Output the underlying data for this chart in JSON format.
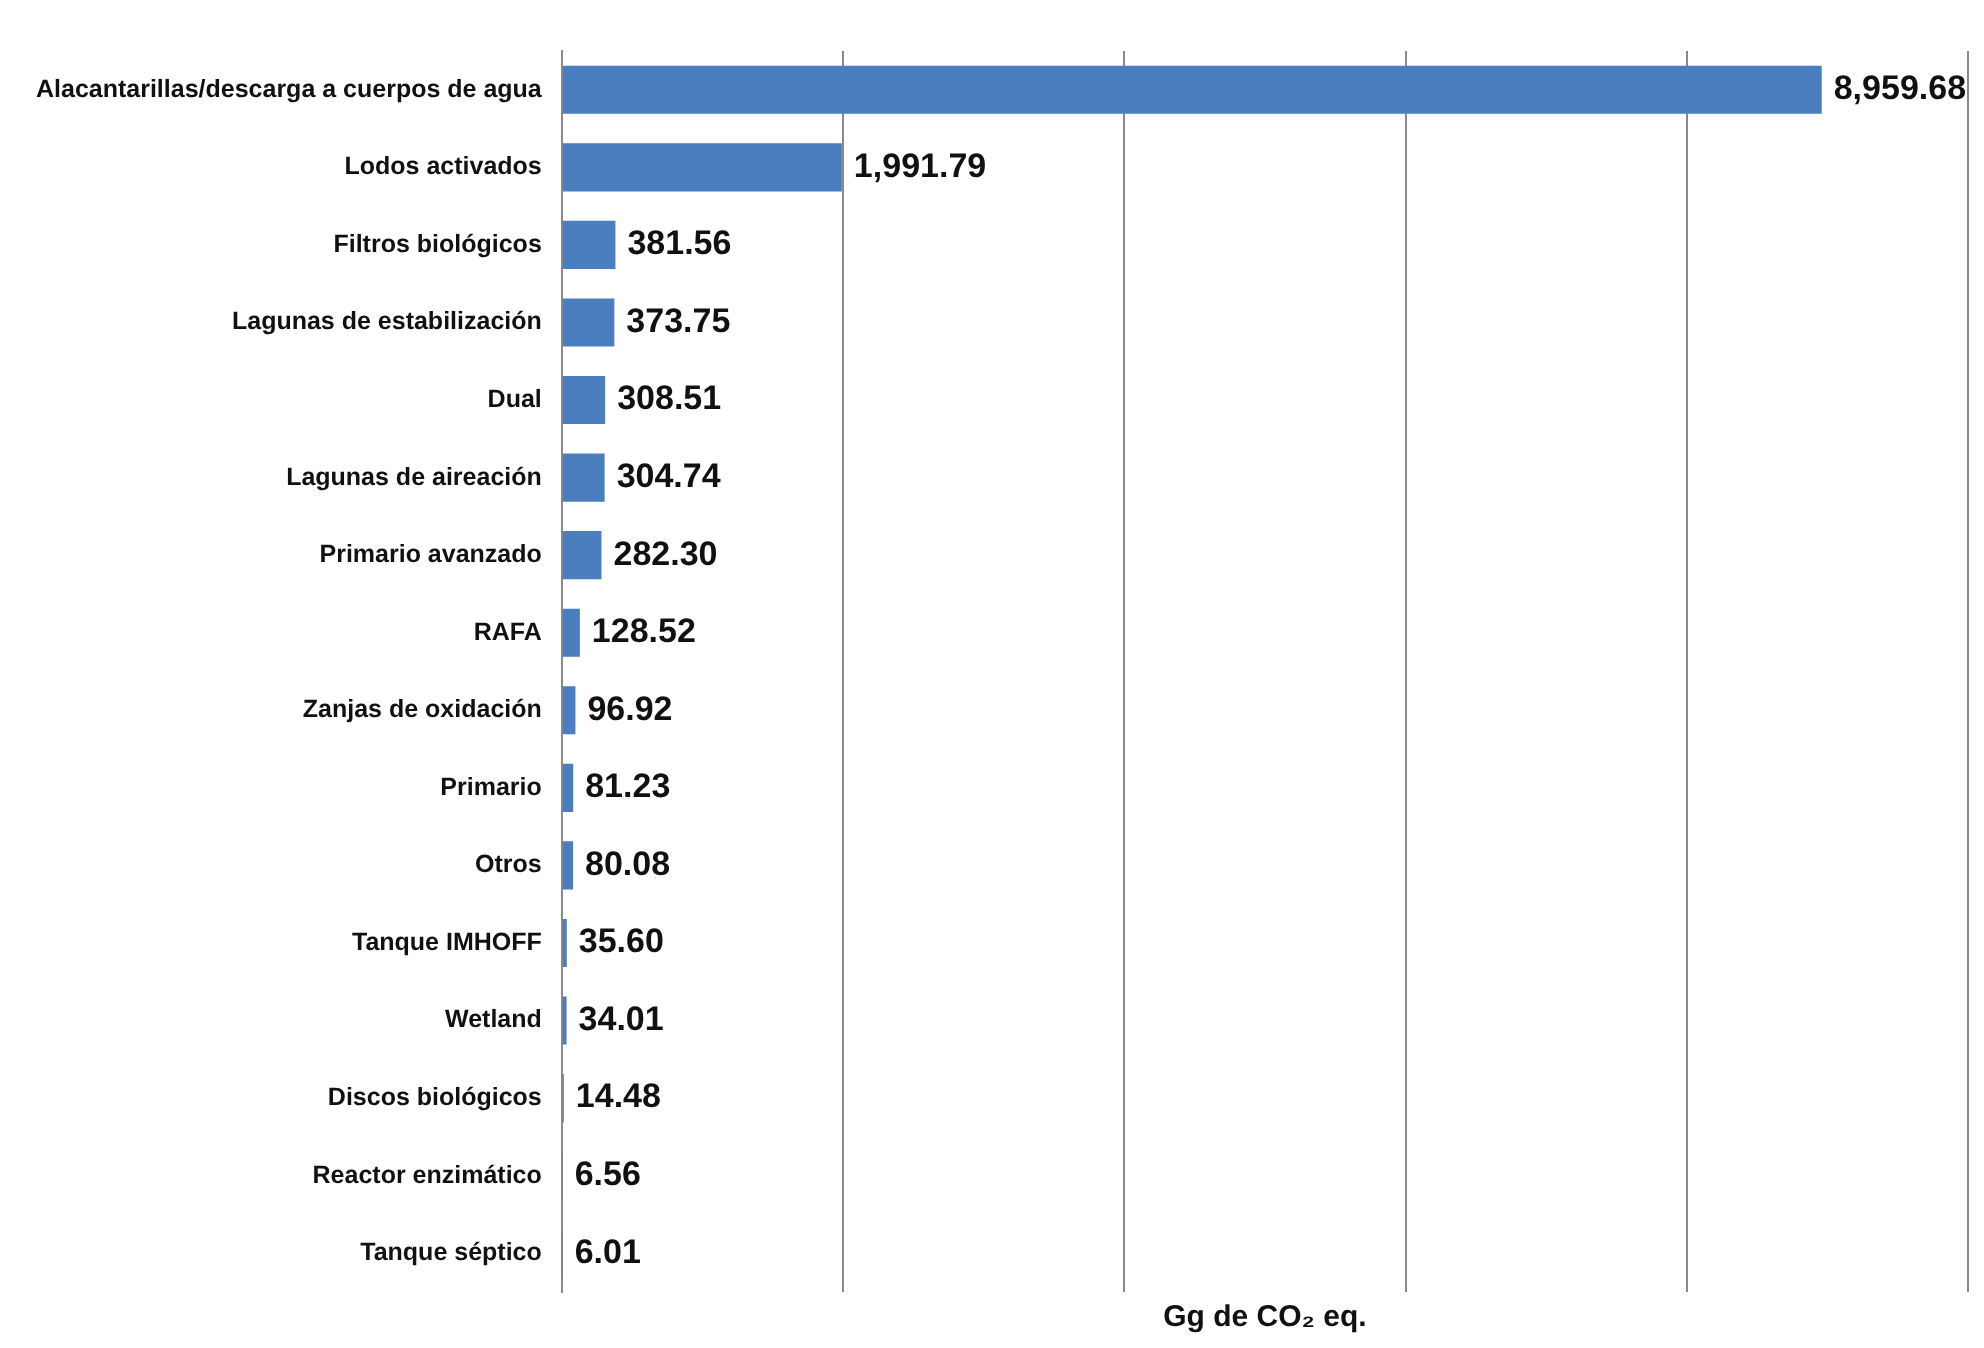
{
  "chart_data": {
    "type": "bar",
    "orientation": "horizontal",
    "xlabel": "Gg de CO₂ eq.",
    "categories": [
      "Alacantarillas/descarga a cuerpos de agua",
      "Lodos activados",
      "Filtros biológicos",
      "Lagunas de estabilización",
      "Dual",
      "Lagunas de aireación",
      "Primario avanzado",
      "RAFA",
      "Zanjas de oxidación",
      "Primario",
      "Otros",
      "Tanque IMHOFF",
      "Wetland",
      "Discos biológicos",
      "Reactor enzimático",
      "Tanque séptico"
    ],
    "values": [
      8959.68,
      1991.79,
      381.56,
      373.75,
      308.51,
      304.74,
      282.3,
      128.52,
      96.92,
      81.23,
      80.08,
      35.6,
      34.01,
      14.48,
      6.56,
      6.01
    ],
    "value_labels": [
      "8,959.68",
      "1,991.79",
      "381.56",
      "373.75",
      "308.51",
      "304.74",
      "282.30",
      "128.52",
      "96.92",
      "81.23",
      "80.08",
      "35.60",
      "34.01",
      "14.48",
      "6.56",
      "6.01"
    ],
    "color": "#4a7ebf",
    "xlim": [
      0,
      10000
    ],
    "xticks": [
      {
        "value": 0,
        "label": null
      },
      {
        "value": 2000,
        "label": null
      },
      {
        "value": 4000,
        "label": null
      },
      {
        "value": 6000,
        "label": null
      },
      {
        "value": 8000,
        "label": null
      },
      {
        "value": 10000,
        "label": null
      }
    ],
    "grid": "x",
    "tick_labels": "y",
    "legend": false
  }
}
